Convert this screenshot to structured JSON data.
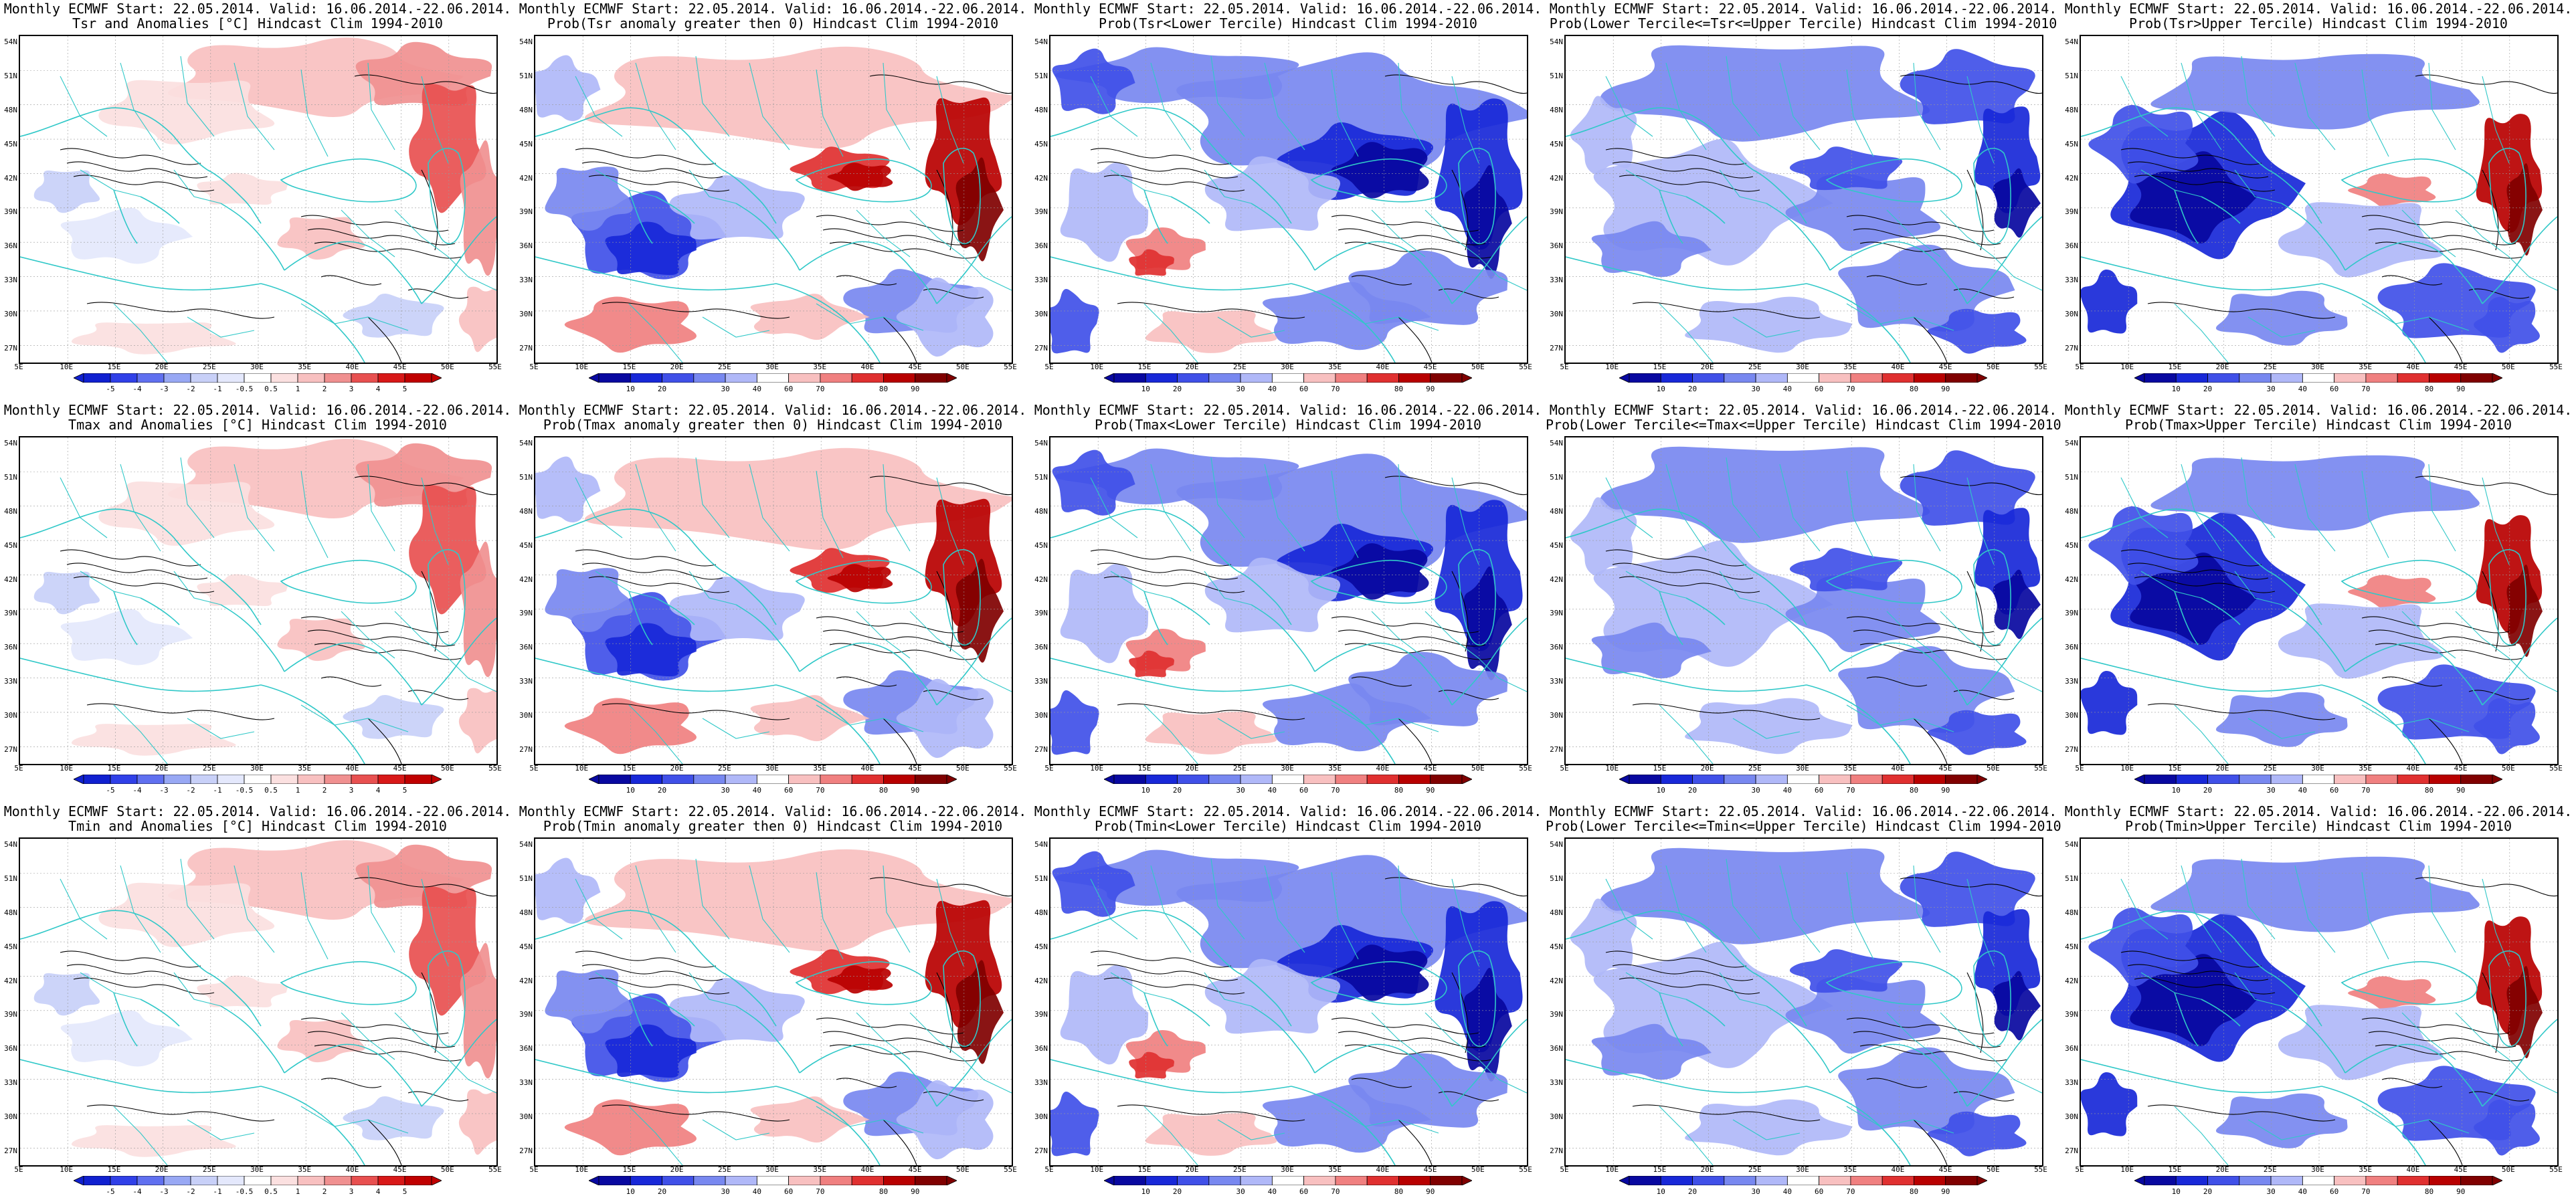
{
  "figure": {
    "header_line1": "Monthly ECMWF Start: 22.05.2014. Valid: 16.06.2014.-22.06.2014.",
    "lat_labels": [
      "54N",
      "51N",
      "48N",
      "45N",
      "42N",
      "39N",
      "36N",
      "33N",
      "30N",
      "27N"
    ],
    "lon_labels": [
      "5E",
      "10E",
      "15E",
      "20E",
      "25E",
      "30E",
      "35E",
      "40E",
      "45E",
      "50E",
      "55E"
    ],
    "rows": [
      {
        "variable": "Tsr",
        "panels": [
          {
            "kind": "anomaly",
            "title2": "Tsr and Anomalies [°C] Hindcast Clim 1994-2010",
            "cbar_labels": [
              "-5",
              "-4",
              "-3",
              "-2",
              "-1",
              "-0.5",
              "0.5",
              "1",
              "2",
              "3",
              "4",
              "5"
            ]
          },
          {
            "kind": "prob_pos",
            "title2": "Prob(Tsr anomaly greater then 0) Hindcast Clim 1994-2010",
            "cbar_labels": [
              "10",
              "20",
              "30",
              "40",
              "60",
              "70",
              "80",
              "90"
            ]
          },
          {
            "kind": "prob_low",
            "title2": "Prob(Tsr<Lower Tercile) Hindcast Clim 1994-2010",
            "cbar_labels": [
              "10",
              "20",
              "30",
              "40",
              "60",
              "70",
              "80",
              "90"
            ]
          },
          {
            "kind": "prob_mid",
            "title2": "Prob(Lower Tercile<=Tsr<=Upper Tercile) Hindcast Clim 1994-2010",
            "cbar_labels": [
              "10",
              "20",
              "30",
              "40",
              "60",
              "70",
              "80",
              "90"
            ]
          },
          {
            "kind": "prob_up",
            "title2": "Prob(Tsr>Upper Tercile) Hindcast Clim 1994-2010",
            "cbar_labels": [
              "10",
              "20",
              "30",
              "40",
              "60",
              "70",
              "80",
              "90"
            ]
          }
        ]
      },
      {
        "variable": "Tmax",
        "panels": [
          {
            "kind": "anomaly",
            "title2": "Tmax and Anomalies [°C] Hindcast Clim 1994-2010",
            "cbar_labels": [
              "-5",
              "-4",
              "-3",
              "-2",
              "-1",
              "-0.5",
              "0.5",
              "1",
              "2",
              "3",
              "4",
              "5"
            ]
          },
          {
            "kind": "prob_pos",
            "title2": "Prob(Tmax anomaly greater then 0) Hindcast Clim 1994-2010",
            "cbar_labels": [
              "10",
              "20",
              "30",
              "40",
              "60",
              "70",
              "80",
              "90"
            ]
          },
          {
            "kind": "prob_low",
            "title2": "Prob(Tmax<Lower Tercile) Hindcast Clim 1994-2010",
            "cbar_labels": [
              "10",
              "20",
              "30",
              "40",
              "60",
              "70",
              "80",
              "90"
            ]
          },
          {
            "kind": "prob_mid",
            "title2": "Prob(Lower Tercile<=Tmax<=Upper Tercile) Hindcast Clim 1994-2010",
            "cbar_labels": [
              "10",
              "20",
              "30",
              "40",
              "60",
              "70",
              "80",
              "90"
            ]
          },
          {
            "kind": "prob_up",
            "title2": "Prob(Tmax>Upper Tercile) Hindcast Clim 1994-2010",
            "cbar_labels": [
              "10",
              "20",
              "30",
              "40",
              "60",
              "70",
              "80",
              "90"
            ]
          }
        ]
      },
      {
        "variable": "Tmin",
        "panels": [
          {
            "kind": "anomaly",
            "title2": "Tmin and Anomalies [°C] Hindcast Clim 1994-2010",
            "cbar_labels": [
              "-5",
              "-4",
              "-3",
              "-2",
              "-1",
              "-0.5",
              "0.5",
              "1",
              "2",
              "3",
              "4",
              "5"
            ]
          },
          {
            "kind": "prob_pos",
            "title2": "Prob(Tmin anomaly greater then 0) Hindcast Clim 1994-2010",
            "cbar_labels": [
              "10",
              "20",
              "30",
              "40",
              "60",
              "70",
              "80",
              "90"
            ]
          },
          {
            "kind": "prob_low",
            "title2": "Prob(Tmin<Lower Tercile) Hindcast Clim 1994-2010",
            "cbar_labels": [
              "10",
              "20",
              "30",
              "40",
              "60",
              "70",
              "80",
              "90"
            ]
          },
          {
            "kind": "prob_mid",
            "title2": "Prob(Lower Tercile<=Tmin<=Upper Tercile) Hindcast Clim 1994-2010",
            "cbar_labels": [
              "10",
              "20",
              "30",
              "40",
              "60",
              "70",
              "80",
              "90"
            ]
          },
          {
            "kind": "prob_up",
            "title2": "Prob(Tmin>Upper Tercile) Hindcast Clim 1994-2010",
            "cbar_labels": [
              "10",
              "20",
              "30",
              "40",
              "60",
              "70",
              "80",
              "90"
            ]
          }
        ]
      }
    ]
  },
  "colors": {
    "anomaly_scale": [
      "#1020d0",
      "#3040e8",
      "#6070f0",
      "#98a8f4",
      "#c8d0f8",
      "#e4e8fc",
      "#ffffff",
      "#fbe0e0",
      "#f8c0c0",
      "#f09090",
      "#e85050",
      "#d81818",
      "#c00000"
    ],
    "prob_scale": [
      "#0808a0",
      "#1828d8",
      "#4050e8",
      "#7888f0",
      "#b0b8f8",
      "#ffffff",
      "#f8c0c0",
      "#f08080",
      "#e03030",
      "#b80000",
      "#800000"
    ],
    "country_lines": "#30c8c8",
    "contours": "#000000"
  }
}
